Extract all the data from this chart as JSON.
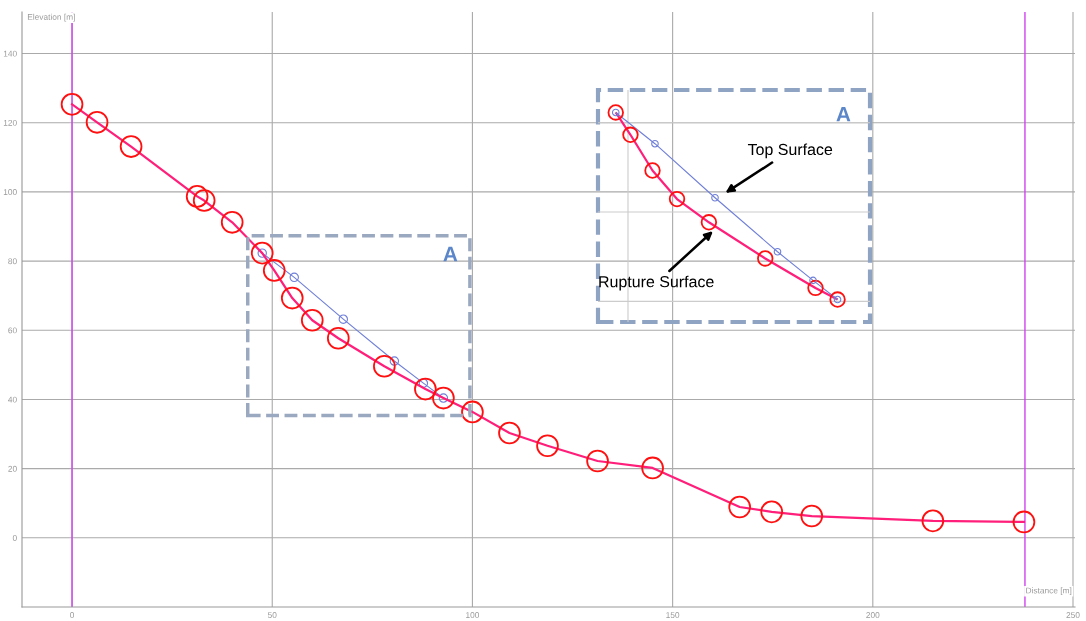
{
  "chart_data": {
    "type": "line",
    "xlabel": "Distance [m]",
    "ylabel": "Elevation [m]",
    "xlim": [
      -12.5,
      250.5
    ],
    "ylim": [
      -20,
      152
    ],
    "xticks": [
      0,
      50,
      100,
      150,
      200,
      250
    ],
    "yticks": [
      0,
      20,
      40,
      60,
      80,
      100,
      120,
      140
    ],
    "grid": true,
    "marker": "circle",
    "line_style": "solid",
    "series": [
      {
        "color": "#ff1f7a",
        "x": [
          0,
          6.25,
          14.75,
          31.25,
          33,
          40,
          47.5,
          50.5,
          55,
          60,
          66.5,
          78,
          88.25,
          92.75,
          100,
          109.25,
          118.75,
          131.25,
          145,
          166.75,
          174.75,
          184.75,
          215,
          237.75
        ],
        "values": [
          125.3,
          120.1,
          113.1,
          98.7,
          97.5,
          91.2,
          82.3,
          77.3,
          69.3,
          62.9,
          57.7,
          49.6,
          43.0,
          40.4,
          36.4,
          30.3,
          26.6,
          22.2,
          20.2,
          8.9,
          7.5,
          6.3,
          4.9,
          4.6
        ]
      },
      {
        "color": "#6f7fd8",
        "x": [
          47.5,
          55.5,
          67.75,
          80.5,
          87.75,
          92.75
        ],
        "values": [
          82.3,
          75.3,
          63.2,
          51.1,
          44.7,
          40.4
        ]
      }
    ],
    "ref_lines": [
      {
        "axis": "x",
        "value": 0,
        "color": "#d040f0"
      },
      {
        "axis": "x",
        "value": 238,
        "color": "#d040f0"
      }
    ],
    "annotations": [
      "A",
      "A",
      "Top Surface",
      "Rupture Surface"
    ]
  }
}
